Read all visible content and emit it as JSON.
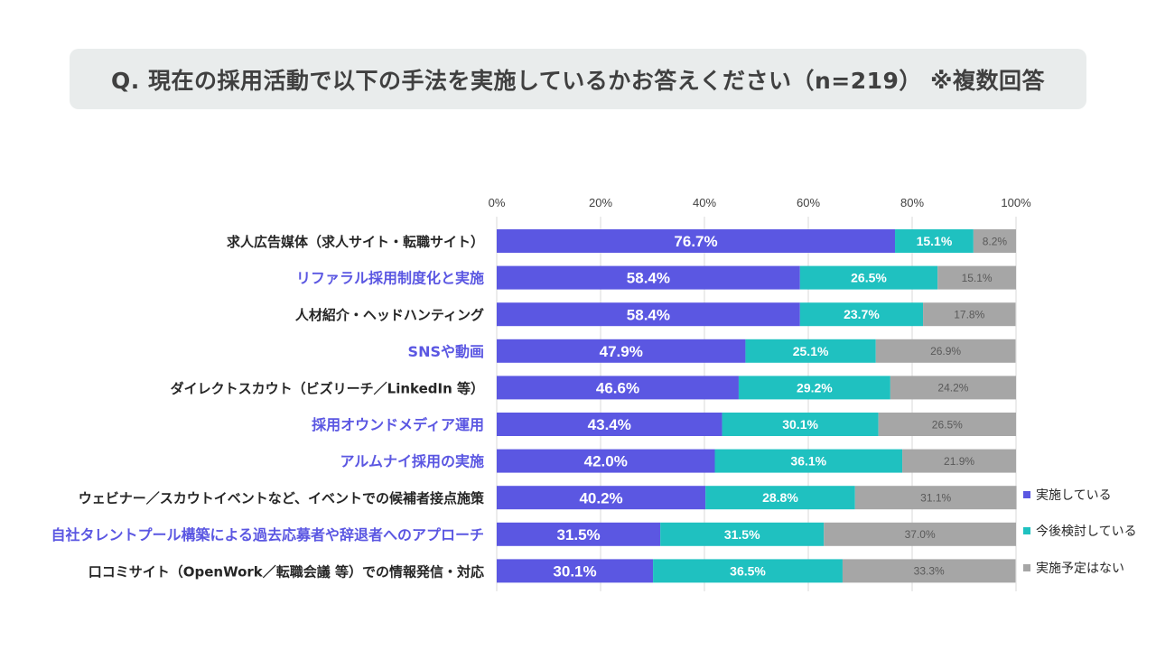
{
  "title": "Q. 現在の採用活動で以下の手法を実施しているかお答えください（n=219） ※複数回答",
  "chart_data": {
    "type": "bar",
    "stacked": true,
    "orientation": "horizontal",
    "xlim": [
      0,
      100
    ],
    "xticks": [
      "0%",
      "20%",
      "40%",
      "60%",
      "80%",
      "100%"
    ],
    "grid": true,
    "legend_position": "right",
    "categories": [
      "求人広告媒体（求人サイト・転職サイト）",
      "リファラル採用制度化と実施",
      "人材紹介・ヘッドハンティング",
      "SNSや動画",
      "ダイレクトスカウト（ビズリーチ／LinkedIn 等）",
      "採用オウンドメディア運用",
      "アルムナイ採用の実施",
      "ウェビナー／スカウトイベントなど、イベントでの候補者接点施策",
      "自社タレントプール構築による過去応募者や辞退者へのアプローチ",
      "口コミサイト（OpenWork／転職会議 等）での情報発信・対応"
    ],
    "highlighted_categories": [
      1,
      3,
      5,
      6,
      8
    ],
    "series": [
      {
        "name": "実施している",
        "color": "#5b57e2",
        "values": [
          76.7,
          58.4,
          58.4,
          47.9,
          46.6,
          43.4,
          42.0,
          40.2,
          31.5,
          30.1
        ],
        "labels": [
          "76.7%",
          "58.4%",
          "58.4%",
          "47.9%",
          "46.6%",
          "43.4%",
          "42.0%",
          "40.2%",
          "31.5%",
          "30.1%"
        ]
      },
      {
        "name": "今後検討している",
        "color": "#1fc1c0",
        "values": [
          15.1,
          26.5,
          23.7,
          25.1,
          29.2,
          30.1,
          36.1,
          28.8,
          31.5,
          36.5
        ],
        "labels": [
          "15.1%",
          "26.5%",
          "23.7%",
          "25.1%",
          "29.2%",
          "30.1%",
          "36.1%",
          "28.8%",
          "31.5%",
          "36.5%"
        ]
      },
      {
        "name": "実施予定はない",
        "color": "#a6a6a6",
        "values": [
          8.2,
          15.1,
          17.8,
          26.9,
          24.2,
          26.5,
          21.9,
          31.1,
          37.0,
          33.3
        ],
        "labels": [
          "8.2%",
          "15.1%",
          "17.8%",
          "26.9%",
          "24.2%",
          "26.5%",
          "21.9%",
          "31.1%",
          "37.0%",
          "33.3%"
        ]
      }
    ],
    "colors": {
      "highlight_label": "#5b57e2",
      "normal_label": "#262626",
      "grid": "#d9d9d9",
      "tick": "#404040"
    }
  }
}
